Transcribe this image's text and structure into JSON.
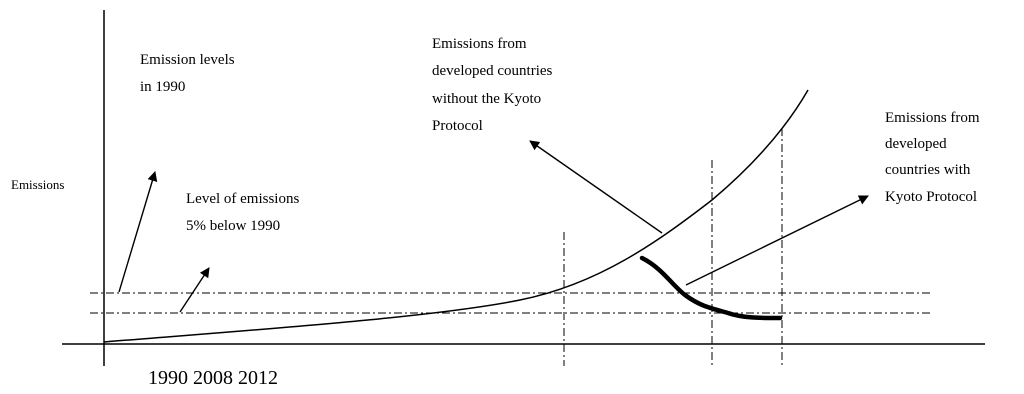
{
  "diagram": {
    "y_axis_label": "Emissions",
    "years_label": "1990 2008 2012",
    "annotations": {
      "levels_1990": [
        "Emission levels",
        "in 1990"
      ],
      "five_pct_below": [
        "Level of emissions",
        "5% below 1990"
      ],
      "without_kyoto": [
        "Emissions from",
        "developed countries",
        "without the Kyoto",
        "Protocol"
      ],
      "with_kyoto": [
        "Emissions from",
        "developed",
        "countries with",
        "Kyoto Protocol"
      ]
    }
  }
}
